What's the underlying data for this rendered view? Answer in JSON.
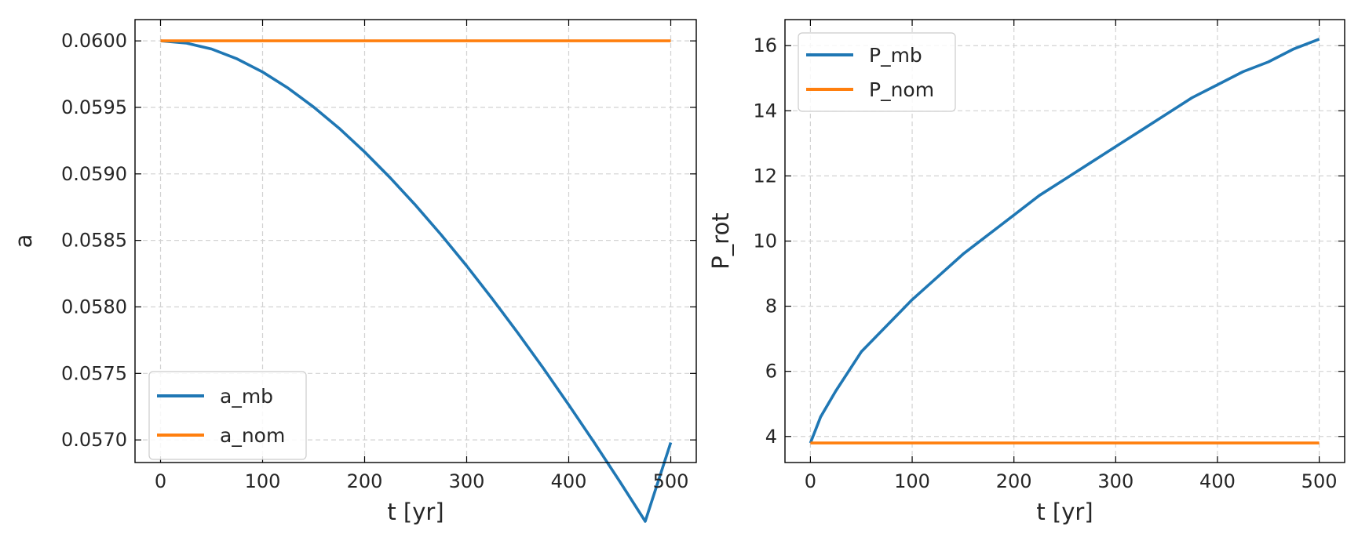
{
  "colors": {
    "series1": "#1f77b4",
    "series2": "#ff7f0e"
  },
  "chart_data": [
    {
      "type": "line",
      "xlabel": "t [yr]",
      "ylabel": "a",
      "xlim": [
        -25,
        525
      ],
      "ylim": [
        0.05683,
        0.06016
      ],
      "xticks": [
        0,
        100,
        200,
        300,
        400,
        500
      ],
      "xtick_labels": [
        "0",
        "100",
        "200",
        "300",
        "400",
        "500"
      ],
      "yticks": [
        0.057,
        0.0575,
        0.058,
        0.0585,
        0.059,
        0.0595,
        0.06
      ],
      "ytick_labels": [
        "0.0570",
        "0.0575",
        "0.0580",
        "0.0585",
        "0.0590",
        "0.0595",
        "0.0600"
      ],
      "grid": true,
      "legend_position": "lower-left",
      "series": [
        {
          "name": "a_mb",
          "color": "#1f77b4",
          "x": [
            0,
            25,
            50,
            75,
            100,
            125,
            150,
            175,
            200,
            225,
            250,
            275,
            300,
            325,
            350,
            375,
            400,
            425,
            450,
            475,
            500
          ],
          "y": [
            0.06,
            0.059984,
            0.059939,
            0.059865,
            0.059766,
            0.059645,
            0.059503,
            0.059343,
            0.059165,
            0.058971,
            0.058764,
            0.058542,
            0.058308,
            0.058062,
            0.057806,
            0.05754,
            0.057264,
            0.05698,
            0.056688,
            0.056388,
            0.05698
          ]
        },
        {
          "name": "a_nom",
          "color": "#ff7f0e",
          "x": [
            0,
            500
          ],
          "y": [
            0.06,
            0.06
          ]
        }
      ]
    },
    {
      "type": "line",
      "xlabel": "t [yr]",
      "ylabel": "P_rot",
      "xlim": [
        -25,
        525
      ],
      "ylim": [
        3.2,
        16.8
      ],
      "xticks": [
        0,
        100,
        200,
        300,
        400,
        500
      ],
      "xtick_labels": [
        "0",
        "100",
        "200",
        "300",
        "400",
        "500"
      ],
      "yticks": [
        4,
        6,
        8,
        10,
        12,
        14,
        16
      ],
      "ytick_labels": [
        "4",
        "6",
        "8",
        "10",
        "12",
        "14",
        "16"
      ],
      "grid": true,
      "legend_position": "upper-left",
      "series": [
        {
          "name": "P_mb",
          "color": "#1f77b4",
          "x": [
            0,
            10,
            25,
            50,
            75,
            100,
            125,
            150,
            175,
            200,
            225,
            250,
            275,
            300,
            325,
            350,
            375,
            400,
            425,
            450,
            475,
            500
          ],
          "y": [
            3.8,
            4.6,
            5.4,
            6.6,
            7.4,
            8.2,
            8.9,
            9.6,
            10.2,
            10.8,
            11.4,
            11.9,
            12.4,
            12.9,
            13.4,
            13.9,
            14.4,
            14.8,
            15.2,
            15.5,
            15.9,
            16.2
          ]
        },
        {
          "name": "P_nom",
          "color": "#ff7f0e",
          "x": [
            0,
            500
          ],
          "y": [
            3.8,
            3.8
          ]
        }
      ]
    }
  ]
}
